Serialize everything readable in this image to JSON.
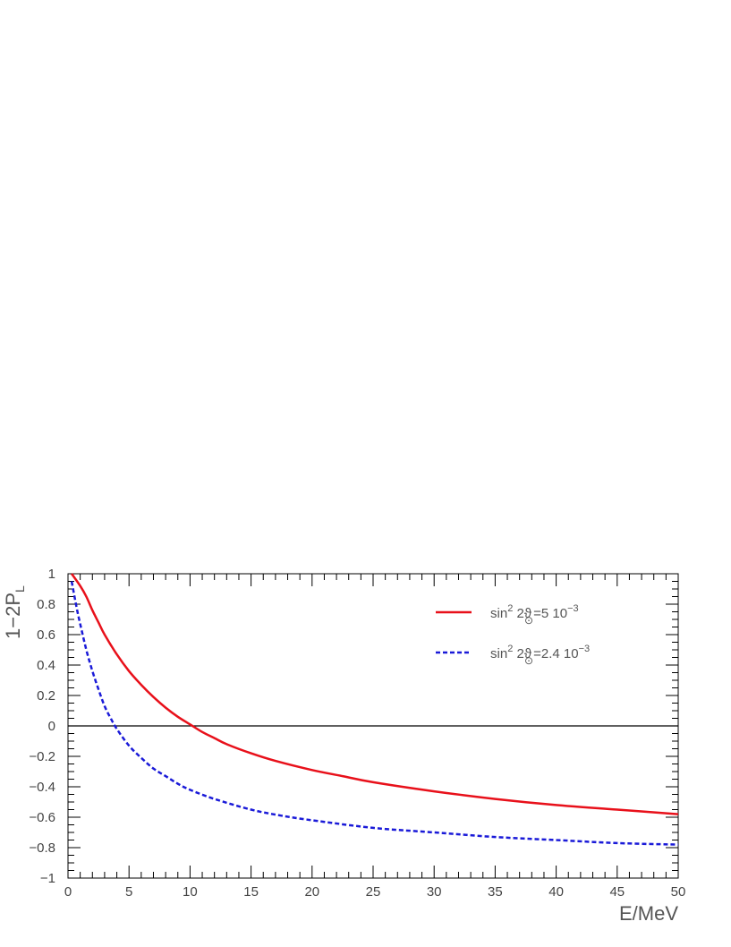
{
  "chart_data": {
    "type": "line",
    "title": "",
    "xlabel": "E/MeV",
    "ylabel": "1−2P",
    "ylabel_sub": "L",
    "xlim": [
      0,
      50
    ],
    "ylim": [
      -1,
      1
    ],
    "x_ticks": [
      0,
      5,
      10,
      15,
      20,
      25,
      30,
      35,
      40,
      45,
      50
    ],
    "y_ticks": [
      -1,
      -0.8,
      -0.6,
      -0.4,
      -0.2,
      0,
      0.2,
      0.4,
      0.6,
      0.8,
      1
    ],
    "x_tick_labels": [
      "0",
      "5",
      "10",
      "15",
      "20",
      "25",
      "30",
      "35",
      "40",
      "45",
      "50"
    ],
    "y_tick_labels": [
      "−1",
      "−0.8",
      "−0.6",
      "−0.4",
      "−0.2",
      "0",
      "0.2",
      "0.4",
      "0.6",
      "0.8",
      "1"
    ],
    "reference_line_y": 0,
    "grid": false,
    "legend_position": "top-right",
    "series": [
      {
        "legend_main": "sin",
        "legend_sup1": "2",
        "legend_mid": " 2ϑ",
        "legend_sub": "⊙",
        "legend_val": "=5 10",
        "legend_sup2": "−3",
        "color": "#e8101a",
        "dash": "solid",
        "x": [
          0.3,
          1,
          1.5,
          2,
          2.5,
          3,
          4,
          5,
          6,
          7,
          8,
          9,
          10,
          11,
          12,
          13,
          15,
          17,
          20,
          22.5,
          25,
          30,
          35,
          40,
          45,
          50
        ],
        "y": [
          1.0,
          0.92,
          0.85,
          0.76,
          0.68,
          0.6,
          0.47,
          0.36,
          0.27,
          0.19,
          0.12,
          0.06,
          0.01,
          -0.04,
          -0.08,
          -0.12,
          -0.18,
          -0.23,
          -0.29,
          -0.33,
          -0.37,
          -0.43,
          -0.48,
          -0.52,
          -0.55,
          -0.58
        ]
      },
      {
        "legend_main": "sin",
        "legend_sup1": "2",
        "legend_mid": " 2ϑ",
        "legend_sub": "⊙",
        "legend_val": "=2.4 10",
        "legend_sup2": "−3",
        "color": "#1a1ad8",
        "dash": "dashed",
        "x": [
          0.3,
          0.7,
          1,
          1.5,
          2,
          2.5,
          3,
          3.5,
          4,
          5,
          6,
          7,
          8,
          9,
          10,
          12,
          15,
          17.5,
          20,
          25,
          30,
          35,
          40,
          45,
          50
        ],
        "y": [
          0.95,
          0.78,
          0.67,
          0.5,
          0.36,
          0.24,
          0.13,
          0.05,
          -0.02,
          -0.13,
          -0.21,
          -0.28,
          -0.33,
          -0.38,
          -0.42,
          -0.48,
          -0.55,
          -0.59,
          -0.62,
          -0.67,
          -0.7,
          -0.73,
          -0.75,
          -0.77,
          -0.78
        ]
      }
    ]
  }
}
